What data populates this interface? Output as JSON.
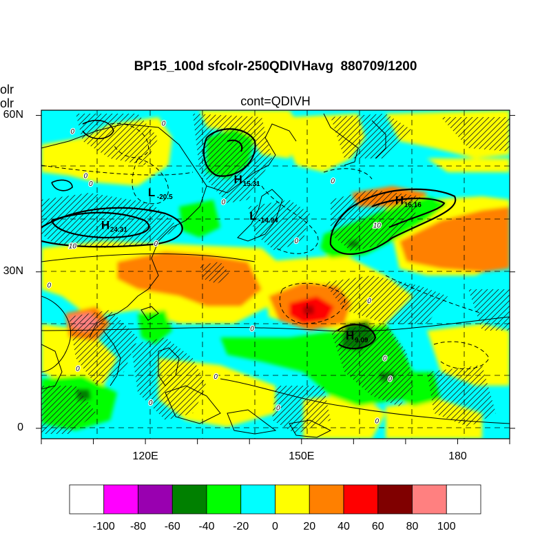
{
  "title": "BP15_100d sfcolr-250QDIVHavg  880709/1200",
  "subtitle": "cont=QDIVH",
  "left_labels": [
    "olr",
    "olr"
  ],
  "axes": {
    "lat_ticks": [
      {
        "value": 60,
        "label": "60N"
      },
      {
        "value": 30,
        "label": "30N"
      },
      {
        "value": 0,
        "label": "0"
      }
    ],
    "lon_ticks": [
      {
        "value": 120,
        "label": "120E"
      },
      {
        "value": 150,
        "label": "150E"
      },
      {
        "value": 180,
        "label": "180"
      }
    ],
    "lon_range": [
      100,
      190
    ],
    "lat_range": [
      -2,
      61
    ]
  },
  "pressure_centers": [
    {
      "type": "L",
      "value": "-20.5",
      "lon": 120.5,
      "lat": 44.5
    },
    {
      "type": "H",
      "value": "15.31",
      "lon": 137.0,
      "lat": 47.0
    },
    {
      "type": "L",
      "value": "-14.94",
      "lon": 140.0,
      "lat": 40.0
    },
    {
      "type": "H",
      "value": "16.16",
      "lon": 168.0,
      "lat": 43.0
    },
    {
      "type": "H",
      "value": "24.31",
      "lon": 111.5,
      "lat": 38.2
    },
    {
      "type": "H",
      "value": "9.09",
      "lon": 158.5,
      "lat": 17.0
    }
  ],
  "contour_labels": [
    {
      "text": "0",
      "lon": 123.5,
      "lat": 58.0
    },
    {
      "text": "0",
      "lon": 106.0,
      "lat": 56.5
    },
    {
      "text": "0",
      "lon": 109.5,
      "lat": 46.5
    },
    {
      "text": "0",
      "lon": 108.5,
      "lat": 48.0
    },
    {
      "text": "0",
      "lon": 122.0,
      "lat": 35.0
    },
    {
      "text": "0",
      "lon": 135.0,
      "lat": 43.0
    },
    {
      "text": "0",
      "lon": 156.0,
      "lat": 47.0
    },
    {
      "text": "0",
      "lon": 149.0,
      "lat": 35.5
    },
    {
      "text": "10",
      "lon": 106.0,
      "lat": 34.5
    },
    {
      "text": "10",
      "lon": 164.5,
      "lat": 38.5
    },
    {
      "text": "0",
      "lon": 101.5,
      "lat": 27.0
    },
    {
      "text": "0",
      "lon": 107.0,
      "lat": 11.0
    },
    {
      "text": "0",
      "lon": 121.0,
      "lat": 4.5
    },
    {
      "text": "0",
      "lon": 133.5,
      "lat": 9.5
    },
    {
      "text": "0",
      "lon": 140.5,
      "lat": 18.7
    },
    {
      "text": "0",
      "lon": 145.5,
      "lat": 3.5
    },
    {
      "text": "0",
      "lon": 164.5,
      "lat": 1.0
    },
    {
      "text": "0",
      "lon": 166.0,
      "lat": 13.0
    },
    {
      "text": "0",
      "lon": 163.0,
      "lat": 24.0
    },
    {
      "text": "0",
      "lon": 167.0,
      "lat": 9.0
    }
  ],
  "colorbar": {
    "labels": [
      "-100",
      "-80",
      "-60",
      "-40",
      "-20",
      "0",
      "20",
      "40",
      "60",
      "80",
      "100"
    ],
    "colors": [
      "#ffffff",
      "#ff00ff",
      "#9900b0",
      "#008000",
      "#00ff00",
      "#00ffff",
      "#ffff00",
      "#ff8000",
      "#ff0000",
      "#800000",
      "#ff8080",
      "#ffffff"
    ]
  },
  "field_colors": {
    "cyan": "#00ffff",
    "yellow": "#ffff00",
    "orange": "#ff8000",
    "green": "#00ff00",
    "red": "#ff0000",
    "dark_green": "#008000",
    "pink": "#ff8080"
  }
}
